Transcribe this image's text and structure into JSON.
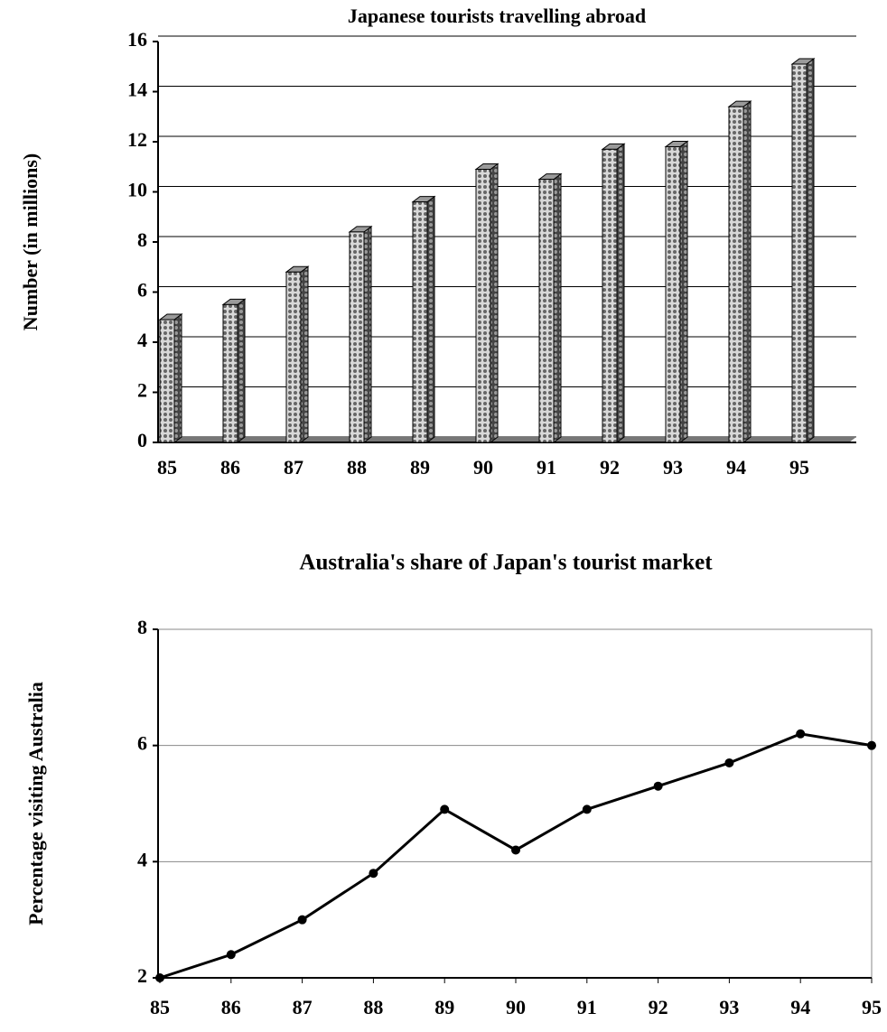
{
  "chart_data": [
    {
      "type": "bar",
      "title": "Japanese tourists travelling abroad",
      "y_label": "Number (in millions)",
      "categories": [
        "85",
        "86",
        "87",
        "88",
        "89",
        "90",
        "91",
        "92",
        "93",
        "94",
        "95"
      ],
      "values": [
        4.9,
        5.5,
        6.8,
        8.4,
        9.6,
        10.9,
        10.5,
        11.7,
        11.8,
        13.4,
        15.1
      ],
      "color": "#9a9a9a",
      "ylim": [
        0,
        16
      ],
      "yticks": [
        0,
        2,
        4,
        6,
        8,
        10,
        12,
        14,
        16
      ],
      "grid": true
    },
    {
      "type": "line",
      "title": "Australia's share of Japan's tourist market",
      "y_label": "Percentage visiting Australia",
      "categories": [
        "85",
        "86",
        "87",
        "88",
        "89",
        "90",
        "91",
        "92",
        "93",
        "94",
        "95"
      ],
      "values": [
        2.0,
        2.4,
        3.0,
        3.8,
        4.9,
        4.2,
        4.9,
        5.3,
        5.7,
        6.2,
        6.0
      ],
      "color": "#000000",
      "ylim": [
        2,
        8
      ],
      "yticks": [
        2,
        4,
        6,
        8
      ],
      "grid": true
    }
  ]
}
